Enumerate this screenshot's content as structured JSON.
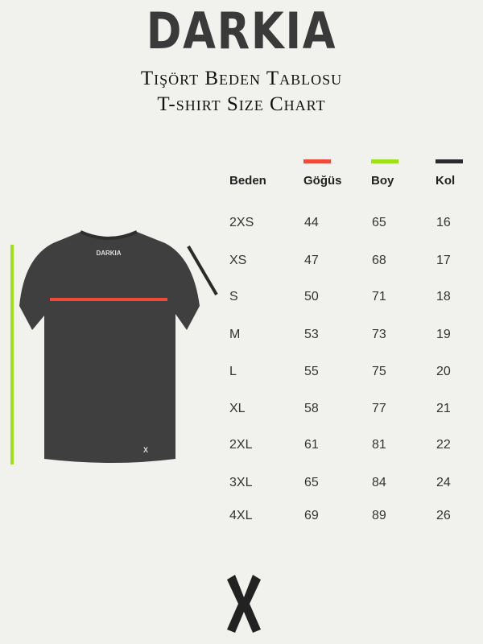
{
  "brand": "DARKIA",
  "title_tr": "Tişört Beden Tablosu",
  "title_en": "T-shirt Size Chart",
  "headers": [
    "Beden",
    "Göğüs",
    "Boy",
    "Kol"
  ],
  "colors": {
    "gogus": "#ee4b3b",
    "boy": "#9be21a",
    "kol": "#2a2a2a"
  },
  "rows": [
    [
      "2XS",
      "44",
      "65",
      "16"
    ],
    [
      "XS",
      "47",
      "68",
      "17"
    ],
    [
      "S",
      "50",
      "71",
      "18"
    ],
    [
      "M",
      "53",
      "73",
      "19"
    ],
    [
      "L",
      "55",
      "75",
      "20"
    ],
    [
      "XL",
      "58",
      "77",
      "21"
    ],
    [
      "2XL",
      "61",
      "81",
      "22"
    ],
    [
      "3XL",
      "65",
      "84",
      "24"
    ],
    [
      "4XL",
      "69",
      "89",
      "26"
    ]
  ],
  "shirt_label": "DARKIA"
}
